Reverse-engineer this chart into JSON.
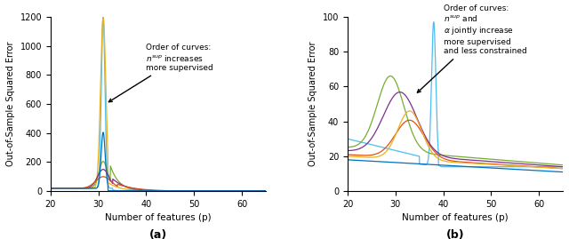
{
  "fig_width": 6.4,
  "fig_height": 2.69,
  "dpi": 100,
  "xlabel": "Number of features (p)",
  "ylabel": "Out-of-Sample Squared Error",
  "subplot_a_label": "(a)",
  "subplot_b_label": "(b)",
  "colors_a": [
    "#4DBEEE",
    "#EDB120",
    "#77AC30",
    "#7E2F8E",
    "#D95319",
    "#0072BD"
  ],
  "colors_b": [
    "#4DBEEE",
    "#77AC30",
    "#7E2F8E",
    "#D95319",
    "#EDB120",
    "#0072BD"
  ],
  "xlim": [
    20,
    65
  ],
  "ylim_a": [
    0,
    1200
  ],
  "ylim_b": [
    0,
    100
  ],
  "yticks_a": [
    0,
    200,
    400,
    600,
    800,
    1000,
    1200
  ],
  "yticks_b": [
    0,
    20,
    40,
    60,
    80,
    100
  ],
  "xticks": [
    20,
    30,
    40,
    50,
    60
  ],
  "annotation_a_text": "Order of curves:\n$n^{sup}$ increases\nmore supervised",
  "annotation_b_text": "Order of curves:\n$n^{sup}$ and\n$\\alpha$ jointly increase\nmore supervised\nand less constrained"
}
